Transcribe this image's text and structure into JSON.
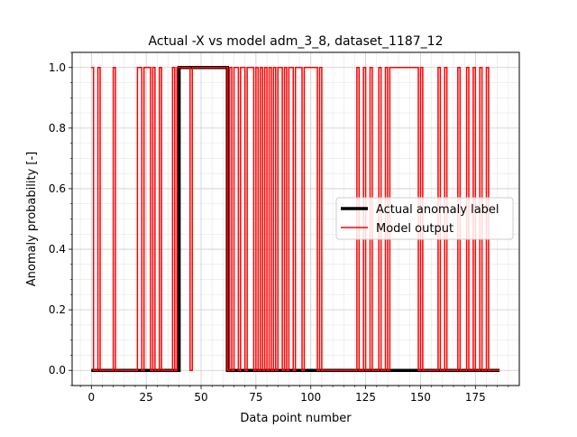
{
  "chart_data": {
    "type": "line",
    "title": "Actual -X vs model adm_3_8, dataset_1187_12",
    "xlabel": "Data point number",
    "ylabel": "Anomaly probability [-]",
    "xlim": [
      -8.75,
      195
    ],
    "ylim": [
      -0.05,
      1.05
    ],
    "x_ticks": [
      0,
      25,
      50,
      75,
      100,
      125,
      150,
      175
    ],
    "x_tick_labels": [
      "0",
      "25",
      "50",
      "75",
      "100",
      "125",
      "150",
      "175"
    ],
    "y_ticks": [
      0.0,
      0.2,
      0.4,
      0.6,
      0.8,
      1.0
    ],
    "y_tick_labels": [
      "0.0",
      "0.2",
      "0.4",
      "0.6",
      "0.8",
      "1.0"
    ],
    "grid": "major and minor",
    "legend_position": "center-right",
    "series": [
      {
        "name": "Actual anomaly label",
        "color": "#000000",
        "style": "step-post",
        "x": [
          0,
          40,
          62,
          186
        ],
        "y": [
          0,
          1,
          0,
          0
        ]
      },
      {
        "name": "Model output",
        "color": "#ff0000",
        "style": "step-post",
        "x": [
          0,
          1,
          3,
          4,
          10,
          11,
          21,
          23,
          24,
          27,
          28,
          29,
          31,
          32,
          37,
          38,
          39,
          45,
          46,
          62,
          63,
          64,
          65,
          67,
          68,
          70,
          71,
          74,
          75,
          76,
          77,
          78,
          79,
          80,
          81,
          82,
          83,
          84,
          85,
          87,
          88,
          89,
          90,
          92,
          93,
          96,
          97,
          103,
          104,
          105,
          121,
          122,
          124,
          125,
          127,
          128,
          131,
          132,
          134,
          135,
          136,
          149,
          150,
          151,
          158,
          159,
          161,
          162,
          167,
          168,
          171,
          172,
          174,
          175,
          177,
          178,
          180,
          181,
          186
        ],
        "y": [
          1,
          0,
          1,
          0,
          1,
          0,
          1,
          0,
          1,
          0,
          1,
          0,
          1,
          0,
          1,
          0,
          1,
          0,
          1,
          0,
          1,
          0,
          1,
          0,
          1,
          0,
          1,
          0,
          1,
          0,
          1,
          0,
          1,
          0,
          1,
          0,
          1,
          0,
          1,
          0,
          1,
          0,
          1,
          0,
          1,
          0,
          1,
          0,
          1,
          0,
          1,
          0,
          1,
          0,
          1,
          0,
          1,
          0,
          1,
          0,
          1,
          0,
          1,
          0,
          1,
          0,
          1,
          0,
          1,
          0,
          1,
          0,
          1,
          0,
          1,
          0,
          1,
          0,
          0
        ]
      }
    ]
  }
}
